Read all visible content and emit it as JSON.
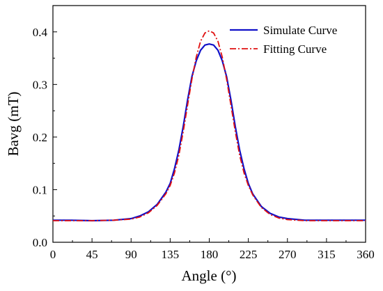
{
  "chart_data": {
    "type": "line",
    "title": "",
    "xlabel": "Angle (°)",
    "ylabel": "Bavg (mT)",
    "xlim": [
      0,
      360
    ],
    "ylim": [
      0.0,
      0.45
    ],
    "xticks": [
      "0",
      "45",
      "90",
      "135",
      "180",
      "225",
      "270",
      "315",
      "360"
    ],
    "yticks": [
      "0.0",
      "0.1",
      "0.2",
      "0.3",
      "0.4"
    ],
    "grid": false,
    "legend_position": "top-right",
    "series": [
      {
        "name": "Simulate Curve",
        "color": "#1010c8",
        "style": "solid",
        "x": [
          0,
          20,
          45,
          70,
          90,
          100,
          110,
          120,
          130,
          135,
          140,
          145,
          150,
          155,
          160,
          165,
          170,
          175,
          180,
          185,
          190,
          195,
          200,
          205,
          210,
          215,
          220,
          225,
          230,
          240,
          250,
          260,
          270,
          290,
          315,
          340,
          360
        ],
        "y": [
          0.042,
          0.042,
          0.041,
          0.042,
          0.045,
          0.05,
          0.058,
          0.072,
          0.095,
          0.112,
          0.14,
          0.175,
          0.22,
          0.27,
          0.315,
          0.345,
          0.365,
          0.375,
          0.377,
          0.375,
          0.365,
          0.345,
          0.315,
          0.27,
          0.22,
          0.175,
          0.14,
          0.112,
          0.092,
          0.068,
          0.055,
          0.048,
          0.045,
          0.042,
          0.042,
          0.042,
          0.042
        ]
      },
      {
        "name": "Fitting Curve",
        "color": "#e01010",
        "style": "dashdot",
        "x": [
          0,
          20,
          45,
          70,
          90,
          100,
          110,
          120,
          130,
          135,
          140,
          145,
          150,
          155,
          160,
          165,
          170,
          175,
          180,
          185,
          190,
          195,
          200,
          205,
          210,
          215,
          220,
          225,
          230,
          240,
          250,
          260,
          270,
          290,
          315,
          340,
          360
        ],
        "y": [
          0.041,
          0.041,
          0.041,
          0.042,
          0.044,
          0.048,
          0.056,
          0.07,
          0.092,
          0.108,
          0.132,
          0.165,
          0.21,
          0.26,
          0.31,
          0.352,
          0.382,
          0.398,
          0.402,
          0.398,
          0.382,
          0.352,
          0.31,
          0.26,
          0.21,
          0.165,
          0.132,
          0.108,
          0.09,
          0.066,
          0.053,
          0.046,
          0.043,
          0.041,
          0.041,
          0.041,
          0.041
        ]
      }
    ]
  }
}
